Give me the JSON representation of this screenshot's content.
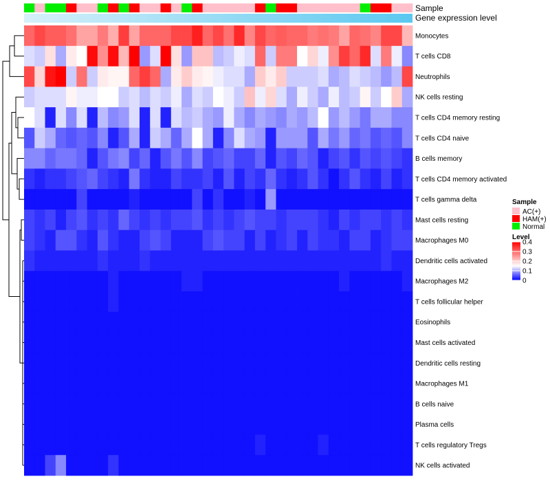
{
  "chart_data": {
    "type": "heatmap",
    "title": "",
    "annotation_labels": {
      "sample": "Sample",
      "expression": "Gene expression level"
    },
    "rows": [
      "Monocytes",
      "T cells CD8",
      "Neutrophils",
      "NK cells resting",
      "T cells CD4 memory resting",
      "T cells CD4 naive",
      "B cells memory",
      "T cells CD4 memory activated",
      "T cells gamma delta",
      "Mast cells resting",
      "Macrophages M0",
      "Dendritic cells activated",
      "Macrophages M2",
      "T cells follicular helper",
      "Eosinophils",
      "Mast cells activated",
      "Dendritic cells resting",
      "Macrophages M1",
      "B cells naive",
      "Plasma cells",
      "T cells regulatory  Tregs",
      "NK cells activated"
    ],
    "sample_groups": [
      "N",
      "A",
      "N",
      "N",
      "H",
      "A",
      "A",
      "N",
      "H",
      "N",
      "H",
      "A",
      "A",
      "H",
      "A",
      "N",
      "H",
      "A",
      "A",
      "A",
      "A",
      "A",
      "H",
      "N",
      "H",
      "H",
      "A",
      "A",
      "A",
      "A",
      "A",
      "A",
      "N",
      "H",
      "H",
      "A",
      "A"
    ],
    "values": [
      [
        0.3,
        0.33,
        0.31,
        0.31,
        0.29,
        0.24,
        0.24,
        0.28,
        0.23,
        0.34,
        0.24,
        0.3,
        0.3,
        0.3,
        0.33,
        0.33,
        0.37,
        0.3,
        0.33,
        0.29,
        0.36,
        0.27,
        0.33,
        0.3,
        0.31,
        0.3,
        0.3,
        0.28,
        0.29,
        0.28,
        0.24,
        0.3,
        0.29,
        0.27,
        0.33,
        0.33,
        0.22
      ],
      [
        0.13,
        0.12,
        0.18,
        0.1,
        0.17,
        0.15,
        0.39,
        0.26,
        0.39,
        0.22,
        0.4,
        0.09,
        0.13,
        0.4,
        0.18,
        0.09,
        0.21,
        0.21,
        0.11,
        0.12,
        0.14,
        0.13,
        0.3,
        0.12,
        0.28,
        0.28,
        0.15,
        0.19,
        0.14,
        0.26,
        0.34,
        0.3,
        0.36,
        0.13,
        0.28,
        0.14,
        0.08
      ],
      [
        0.33,
        0.19,
        0.38,
        0.41,
        0.12,
        0.29,
        0.12,
        0.17,
        0.16,
        0.16,
        0.3,
        0.34,
        0.3,
        0.1,
        0.17,
        0.2,
        0.17,
        0.16,
        0.14,
        0.13,
        0.13,
        0.1,
        0.2,
        0.17,
        0.2,
        0.12,
        0.12,
        0.12,
        0.13,
        0.1,
        0.11,
        0.13,
        0.12,
        0.11,
        0.09,
        0.11,
        0.33
      ],
      [
        0.12,
        0.13,
        0.13,
        0.13,
        0.16,
        0.14,
        0.14,
        0.15,
        0.15,
        0.12,
        0.13,
        0.11,
        0.13,
        0.12,
        0.14,
        0.1,
        0.13,
        0.12,
        0.15,
        0.14,
        0.12,
        0.21,
        0.14,
        0.19,
        0.13,
        0.1,
        0.14,
        0.12,
        0.1,
        0.14,
        0.11,
        0.12,
        0.16,
        0.12,
        0.15,
        0.2,
        0.1
      ],
      [
        0.15,
        0.13,
        0.02,
        0.13,
        0.08,
        0.13,
        0.02,
        0.11,
        0.08,
        0.09,
        0.13,
        0.02,
        0.13,
        0.02,
        0.13,
        0.11,
        0.12,
        0.1,
        0.09,
        0.14,
        0.1,
        0.08,
        0.1,
        0.09,
        0.08,
        0.1,
        0.09,
        0.11,
        0.15,
        0.09,
        0.11,
        0.09,
        0.07,
        0.1,
        0.1,
        0.08,
        0.08
      ],
      [
        0.05,
        0.12,
        0.1,
        0.06,
        0.05,
        0.06,
        0.05,
        0.08,
        0.02,
        0.05,
        0.1,
        0.02,
        0.12,
        0.1,
        0.06,
        0.1,
        0.15,
        0.1,
        0.02,
        0.08,
        0.13,
        0.1,
        0.09,
        0.02,
        0.09,
        0.09,
        0.09,
        0.05,
        0.1,
        0.07,
        0.09,
        0.06,
        0.07,
        0.05,
        0.06,
        0.05,
        0.08
      ],
      [
        0.08,
        0.08,
        0.06,
        0.07,
        0.07,
        0.06,
        0.02,
        0.05,
        0.07,
        0.08,
        0.04,
        0.06,
        0.02,
        0.05,
        0.07,
        0.05,
        0.08,
        0.04,
        0.05,
        0.06,
        0.04,
        0.04,
        0.06,
        0.02,
        0.05,
        0.04,
        0.06,
        0.05,
        0.02,
        0.04,
        0.05,
        0.03,
        0.05,
        0.04,
        0.05,
        0.04,
        0.03
      ],
      [
        0.03,
        0.02,
        0.03,
        0.03,
        0.04,
        0.05,
        0.06,
        0.04,
        0.03,
        0.02,
        0.07,
        0.03,
        0.02,
        0.02,
        0.04,
        0.03,
        0.03,
        0.04,
        0.02,
        0.05,
        0.02,
        0.04,
        0.03,
        0.06,
        0.03,
        0.02,
        0.03,
        0.05,
        0.03,
        0.01,
        0.03,
        0.05,
        0.03,
        0.02,
        0.04,
        0.02,
        0.03
      ],
      [
        0.01,
        0.01,
        0.01,
        0.01,
        0.01,
        0.04,
        0.01,
        0.01,
        0.01,
        0.01,
        0.02,
        0.01,
        0.01,
        0.01,
        0.01,
        0.01,
        0.04,
        0.01,
        0.03,
        0.01,
        0.01,
        0.02,
        0.01,
        0.09,
        0.01,
        0.01,
        0.01,
        0.01,
        0.01,
        0.01,
        0.01,
        0.01,
        0.01,
        0.01,
        0.01,
        0.01,
        0.01
      ],
      [
        0.04,
        0.03,
        0.04,
        0.02,
        0.04,
        0.05,
        0.03,
        0.04,
        0.03,
        0.06,
        0.04,
        0.03,
        0.04,
        0.03,
        0.04,
        0.04,
        0.05,
        0.03,
        0.04,
        0.03,
        0.04,
        0.05,
        0.04,
        0.04,
        0.03,
        0.04,
        0.04,
        0.04,
        0.03,
        0.02,
        0.04,
        0.03,
        0.04,
        0.04,
        0.03,
        0.04,
        0.03
      ],
      [
        0.04,
        0.03,
        0.02,
        0.05,
        0.05,
        0.03,
        0.02,
        0.05,
        0.03,
        0.02,
        0.02,
        0.04,
        0.05,
        0.04,
        0.02,
        0.02,
        0.02,
        0.04,
        0.05,
        0.04,
        0.04,
        0.02,
        0.04,
        0.02,
        0.03,
        0.04,
        0.02,
        0.04,
        0.03,
        0.03,
        0.02,
        0.04,
        0.04,
        0.02,
        0.03,
        0.04,
        0.04
      ],
      [
        0.03,
        0.02,
        0.02,
        0.02,
        0.02,
        0.02,
        0.02,
        0.03,
        0.02,
        0.02,
        0.02,
        0.03,
        0.02,
        0.02,
        0.02,
        0.02,
        0.02,
        0.02,
        0.02,
        0.02,
        0.02,
        0.02,
        0.02,
        0.02,
        0.02,
        0.02,
        0.02,
        0.02,
        0.02,
        0.02,
        0.02,
        0.02,
        0.02,
        0.02,
        0.03,
        0.02,
        0.02
      ],
      [
        0.01,
        0.01,
        0.01,
        0.01,
        0.01,
        0.01,
        0.01,
        0.01,
        0.02,
        0.01,
        0.01,
        0.01,
        0.01,
        0.01,
        0.01,
        0.02,
        0.02,
        0.01,
        0.01,
        0.01,
        0.01,
        0.01,
        0.01,
        0.01,
        0.01,
        0.01,
        0.01,
        0.01,
        0.01,
        0.01,
        0.02,
        0.01,
        0.01,
        0.01,
        0.01,
        0.01,
        0.02
      ],
      [
        0.01,
        0.01,
        0.01,
        0.01,
        0.01,
        0.01,
        0.01,
        0.01,
        0.02,
        0.01,
        0.01,
        0.01,
        0.01,
        0.01,
        0.01,
        0.01,
        0.01,
        0.01,
        0.01,
        0.01,
        0.01,
        0.01,
        0.01,
        0.01,
        0.01,
        0.01,
        0.01,
        0.01,
        0.01,
        0.01,
        0.01,
        0.01,
        0.01,
        0.01,
        0.01,
        0.01,
        0.01
      ],
      [
        0.01,
        0.01,
        0.01,
        0.01,
        0.01,
        0.01,
        0.01,
        0.01,
        0.01,
        0.01,
        0.01,
        0.01,
        0.01,
        0.01,
        0.01,
        0.01,
        0.01,
        0.01,
        0.01,
        0.01,
        0.01,
        0.01,
        0.01,
        0.01,
        0.01,
        0.01,
        0.01,
        0.01,
        0.01,
        0.01,
        0.01,
        0.01,
        0.01,
        0.01,
        0.01,
        0.01,
        0.01
      ],
      [
        0.01,
        0.01,
        0.01,
        0.01,
        0.01,
        0.01,
        0.01,
        0.01,
        0.01,
        0.01,
        0.01,
        0.01,
        0.01,
        0.01,
        0.01,
        0.01,
        0.01,
        0.01,
        0.01,
        0.01,
        0.01,
        0.01,
        0.01,
        0.01,
        0.01,
        0.01,
        0.01,
        0.01,
        0.01,
        0.01,
        0.01,
        0.01,
        0.01,
        0.01,
        0.01,
        0.01,
        0.01
      ],
      [
        0.01,
        0.01,
        0.01,
        0.01,
        0.01,
        0.01,
        0.01,
        0.01,
        0.01,
        0.01,
        0.01,
        0.01,
        0.01,
        0.01,
        0.01,
        0.01,
        0.01,
        0.01,
        0.01,
        0.01,
        0.01,
        0.01,
        0.01,
        0.01,
        0.01,
        0.01,
        0.01,
        0.01,
        0.01,
        0.01,
        0.01,
        0.01,
        0.01,
        0.01,
        0.01,
        0.01,
        0.01
      ],
      [
        0.01,
        0.01,
        0.01,
        0.01,
        0.01,
        0.01,
        0.01,
        0.01,
        0.01,
        0.01,
        0.01,
        0.01,
        0.01,
        0.01,
        0.01,
        0.01,
        0.01,
        0.01,
        0.01,
        0.01,
        0.01,
        0.01,
        0.01,
        0.01,
        0.01,
        0.01,
        0.01,
        0.01,
        0.01,
        0.01,
        0.01,
        0.01,
        0.01,
        0.01,
        0.01,
        0.01,
        0.01
      ],
      [
        0.01,
        0.01,
        0.01,
        0.01,
        0.01,
        0.01,
        0.01,
        0.01,
        0.01,
        0.01,
        0.01,
        0.01,
        0.01,
        0.01,
        0.01,
        0.01,
        0.01,
        0.01,
        0.01,
        0.01,
        0.01,
        0.01,
        0.01,
        0.01,
        0.01,
        0.01,
        0.01,
        0.01,
        0.01,
        0.01,
        0.01,
        0.01,
        0.01,
        0.01,
        0.01,
        0.01,
        0.01
      ],
      [
        0.01,
        0.01,
        0.01,
        0.01,
        0.01,
        0.01,
        0.01,
        0.01,
        0.01,
        0.01,
        0.01,
        0.01,
        0.01,
        0.01,
        0.01,
        0.01,
        0.01,
        0.01,
        0.01,
        0.01,
        0.01,
        0.01,
        0.01,
        0.01,
        0.01,
        0.01,
        0.01,
        0.01,
        0.01,
        0.01,
        0.01,
        0.01,
        0.01,
        0.01,
        0.01,
        0.01,
        0.01
      ],
      [
        0.01,
        0.01,
        0.01,
        0.01,
        0.01,
        0.01,
        0.01,
        0.01,
        0.01,
        0.01,
        0.01,
        0.01,
        0.01,
        0.01,
        0.01,
        0.01,
        0.01,
        0.01,
        0.01,
        0.01,
        0.01,
        0.01,
        0.02,
        0.01,
        0.01,
        0.01,
        0.01,
        0.01,
        0.02,
        0.01,
        0.01,
        0.01,
        0.01,
        0.01,
        0.01,
        0.01,
        0.01
      ],
      [
        0.01,
        0.01,
        0.04,
        0.08,
        0.01,
        0.01,
        0.01,
        0.01,
        0.03,
        0.01,
        0.01,
        0.01,
        0.01,
        0.01,
        0.01,
        0.01,
        0.01,
        0.01,
        0.01,
        0.01,
        0.01,
        0.01,
        0.01,
        0.01,
        0.01,
        0.01,
        0.01,
        0.01,
        0.01,
        0.01,
        0.01,
        0.01,
        0.01,
        0.01,
        0.01,
        0.01,
        0.01
      ]
    ],
    "legend": {
      "sample_title": "Sample",
      "sample_entries": [
        {
          "key": "A",
          "label": "AC(+)",
          "color": "#ffc0cb"
        },
        {
          "key": "H",
          "label": "HAM(+)",
          "color": "#ff0000"
        },
        {
          "key": "N",
          "label": "Normal",
          "color": "#00ee00"
        }
      ],
      "level_title": "Level",
      "level_ticks": [
        0.4,
        0.3,
        0.2,
        0.1,
        0
      ],
      "level_tick_labels": [
        "0.4",
        "0.3",
        "0.2",
        "0.1",
        "0"
      ],
      "placement": "right"
    },
    "colorscale": {
      "min": 0,
      "mid": 0.15,
      "max": 0.4,
      "low_color": "#0000ff",
      "mid_color": "#ffffff",
      "high_color": "#ff0000"
    },
    "expression_bar_colors": [
      "#d6f0fa",
      "#5bc8f0"
    ]
  }
}
